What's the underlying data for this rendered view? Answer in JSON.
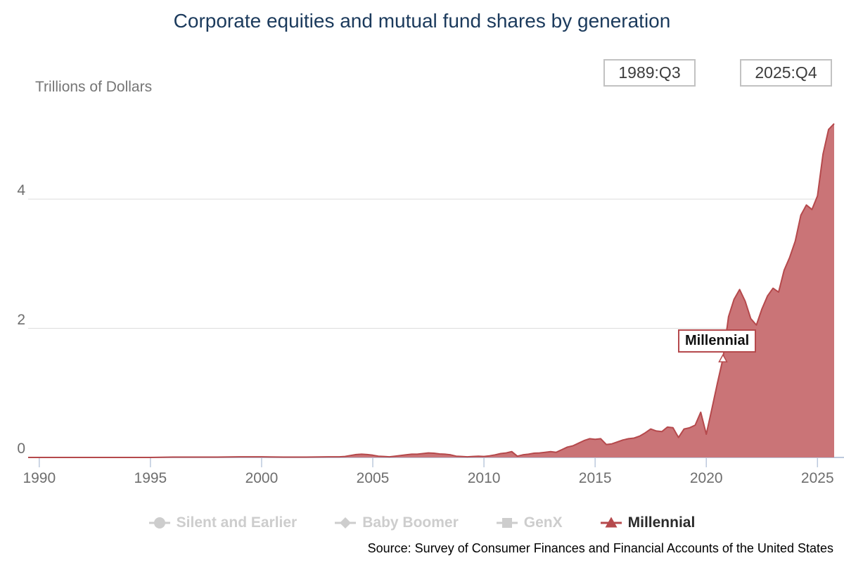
{
  "title": "Corporate equities and mutual fund shares by generation",
  "controls": {
    "start_period": "1989:Q3",
    "end_period": "2025:Q4"
  },
  "axis_unit_label": "Trillions of Dollars",
  "annotation": {
    "label": "Millennial"
  },
  "legend": [
    {
      "label": "Silent and Earlier",
      "marker": "circle",
      "active": false
    },
    {
      "label": "Baby Boomer",
      "marker": "diamond",
      "active": false
    },
    {
      "label": "GenX",
      "marker": "square",
      "active": false
    },
    {
      "label": "Millennial",
      "marker": "triangle",
      "active": true
    }
  ],
  "source": "Source: Survey of Consumer Finances and Financial Accounts of the United States",
  "colors": {
    "title_text": "#1b3a5c",
    "series_line": "#b5494c",
    "series_fill": "#ca7477",
    "grid_line": "#dcdcdc",
    "axis_line": "#bcc9dd",
    "muted_text": "#6e6e6e",
    "legend_disabled": "#cdcdcd",
    "legend_active_text": "#2b2b2b"
  },
  "chart_data": {
    "type": "area",
    "series_name": "Millennial",
    "title": "Corporate equities and mutual fund shares by generation",
    "ylabel": "Trillions of Dollars",
    "x_unit": "decimal_year_quarter_start",
    "xlim": [
      1989.5,
      2025.75
    ],
    "ylim": [
      0,
      5.35
    ],
    "x_ticks": [
      1990,
      1995,
      2000,
      2005,
      2010,
      2015,
      2020,
      2025
    ],
    "y_ticks": [
      0,
      2,
      4
    ],
    "grid": "horizontal_only",
    "legend_position": "bottom",
    "marker_point": {
      "x": 2020.75,
      "y": 1.53
    },
    "points": [
      [
        1989.5,
        0.0
      ],
      [
        1990,
        0.0
      ],
      [
        1991,
        0.0
      ],
      [
        1992,
        0.0
      ],
      [
        1993,
        0.0
      ],
      [
        1994,
        0.0
      ],
      [
        1995,
        0.0
      ],
      [
        1996,
        0.005
      ],
      [
        1997,
        0.005
      ],
      [
        1998,
        0.005
      ],
      [
        1999,
        0.01
      ],
      [
        2000,
        0.01
      ],
      [
        2001,
        0.005
      ],
      [
        2002,
        0.005
      ],
      [
        2003,
        0.01
      ],
      [
        2003.5,
        0.01
      ],
      [
        2003.75,
        0.015
      ],
      [
        2004,
        0.03
      ],
      [
        2004.25,
        0.045
      ],
      [
        2004.5,
        0.05
      ],
      [
        2004.75,
        0.045
      ],
      [
        2005,
        0.035
      ],
      [
        2005.25,
        0.02
      ],
      [
        2005.5,
        0.015
      ],
      [
        2005.75,
        0.01
      ],
      [
        2006,
        0.02
      ],
      [
        2006.25,
        0.03
      ],
      [
        2006.5,
        0.04
      ],
      [
        2006.75,
        0.05
      ],
      [
        2007,
        0.05
      ],
      [
        2007.25,
        0.06
      ],
      [
        2007.5,
        0.07
      ],
      [
        2007.75,
        0.065
      ],
      [
        2008,
        0.055
      ],
      [
        2008.25,
        0.05
      ],
      [
        2008.5,
        0.04
      ],
      [
        2008.75,
        0.02
      ],
      [
        2009,
        0.015
      ],
      [
        2009.25,
        0.01
      ],
      [
        2009.5,
        0.015
      ],
      [
        2009.75,
        0.02
      ],
      [
        2010,
        0.015
      ],
      [
        2010.25,
        0.025
      ],
      [
        2010.5,
        0.04
      ],
      [
        2010.75,
        0.06
      ],
      [
        2011,
        0.07
      ],
      [
        2011.25,
        0.09
      ],
      [
        2011.5,
        0.02
      ],
      [
        2011.75,
        0.04
      ],
      [
        2012,
        0.05
      ],
      [
        2012.25,
        0.065
      ],
      [
        2012.5,
        0.07
      ],
      [
        2012.75,
        0.08
      ],
      [
        2013,
        0.09
      ],
      [
        2013.25,
        0.08
      ],
      [
        2013.5,
        0.12
      ],
      [
        2013.75,
        0.16
      ],
      [
        2014,
        0.18
      ],
      [
        2014.25,
        0.22
      ],
      [
        2014.5,
        0.26
      ],
      [
        2014.75,
        0.29
      ],
      [
        2015,
        0.28
      ],
      [
        2015.25,
        0.29
      ],
      [
        2015.5,
        0.2
      ],
      [
        2015.75,
        0.21
      ],
      [
        2016,
        0.24
      ],
      [
        2016.25,
        0.27
      ],
      [
        2016.5,
        0.29
      ],
      [
        2016.75,
        0.3
      ],
      [
        2017,
        0.33
      ],
      [
        2017.25,
        0.38
      ],
      [
        2017.5,
        0.44
      ],
      [
        2017.75,
        0.41
      ],
      [
        2018,
        0.4
      ],
      [
        2018.25,
        0.47
      ],
      [
        2018.5,
        0.46
      ],
      [
        2018.75,
        0.31
      ],
      [
        2019,
        0.44
      ],
      [
        2019.25,
        0.46
      ],
      [
        2019.5,
        0.5
      ],
      [
        2019.75,
        0.7
      ],
      [
        2020,
        0.36
      ],
      [
        2020.25,
        0.75
      ],
      [
        2020.5,
        1.15
      ],
      [
        2020.75,
        1.53
      ],
      [
        2021,
        2.18
      ],
      [
        2021.25,
        2.45
      ],
      [
        2021.5,
        2.6
      ],
      [
        2021.75,
        2.42
      ],
      [
        2022,
        2.15
      ],
      [
        2022.25,
        2.05
      ],
      [
        2022.5,
        2.3
      ],
      [
        2022.75,
        2.5
      ],
      [
        2023,
        2.62
      ],
      [
        2023.25,
        2.56
      ],
      [
        2023.5,
        2.9
      ],
      [
        2023.75,
        3.1
      ],
      [
        2024,
        3.35
      ],
      [
        2024.25,
        3.75
      ],
      [
        2024.5,
        3.91
      ],
      [
        2024.75,
        3.84
      ],
      [
        2025,
        4.05
      ],
      [
        2025.25,
        4.7
      ],
      [
        2025.5,
        5.08
      ],
      [
        2025.75,
        5.17
      ]
    ]
  }
}
